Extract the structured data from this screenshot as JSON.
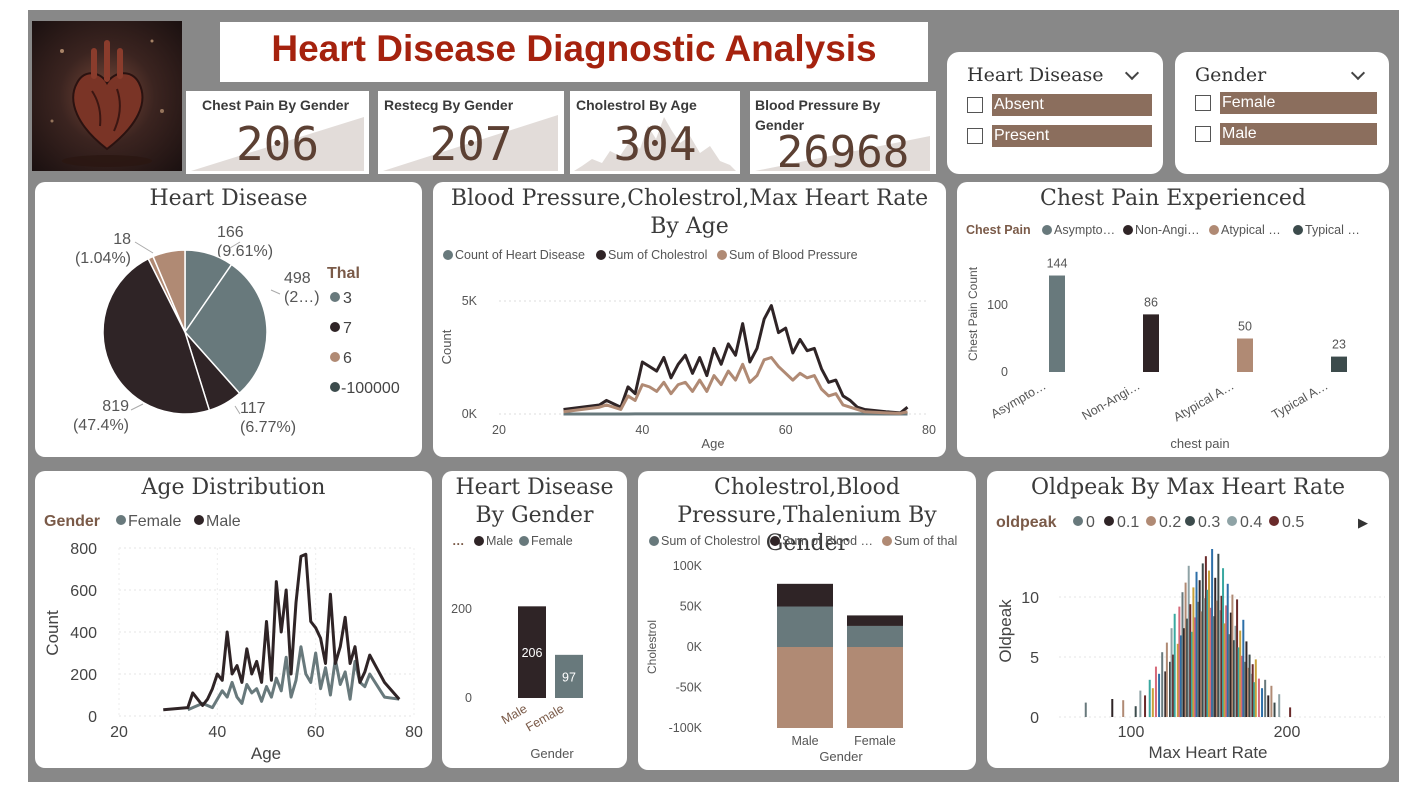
{
  "header": {
    "title": "Heart Disease Diagnostic Analysis",
    "image_icon": "anatomical-heart-icon"
  },
  "kpis": [
    {
      "label": "Chest Pain By Gender",
      "value": "206"
    },
    {
      "label": "Restecg By Gender",
      "value": "207"
    },
    {
      "label": "Cholestrol By Age",
      "value": "304"
    },
    {
      "label": "Blood Pressure By Gender",
      "value": "26968"
    }
  ],
  "slicers": {
    "heart_disease": {
      "title": "Heart Disease",
      "options": [
        "Absent",
        "Present"
      ]
    },
    "gender": {
      "title": "Gender",
      "options": [
        "Female",
        "Male"
      ]
    }
  },
  "colors": {
    "slate": "#68797c",
    "dark": "#2f2426",
    "tan": "#b08a74",
    "charcoal": "#3c4b4c",
    "brown_text": "#7a5a48",
    "title_red": "#a5220e"
  },
  "chart_data": [
    {
      "id": "heart-disease-pie",
      "type": "pie",
      "title": "Heart Disease",
      "legend_title": "Thal",
      "legend": [
        "3",
        "7",
        "6",
        "-100000"
      ],
      "slices": [
        {
          "value": 166,
          "label": "166",
          "pct": "(9.61%)"
        },
        {
          "value": 498,
          "label": "498",
          "pct": "(2…)"
        },
        {
          "value": 117,
          "label": "117",
          "pct": "(6.77%)"
        },
        {
          "value": 819,
          "label": "819",
          "pct": "(47.4%)"
        },
        {
          "value": 18,
          "label": "18",
          "pct": "(1.04%)"
        },
        {
          "value": 110,
          "label": "",
          "pct": ""
        }
      ]
    },
    {
      "id": "bp-chol-hr-by-age",
      "type": "line",
      "title": "Blood Pressure,Cholestrol,Max Heart Rate By Age",
      "xlabel": "Age",
      "ylabel": "Count",
      "xlim": [
        20,
        80
      ],
      "ylim": [
        0,
        5000
      ],
      "xticks": [
        "20",
        "40",
        "60",
        "80"
      ],
      "yticks": [
        "0K",
        "5K"
      ],
      "legend": [
        "Count of Heart Disease",
        "Sum of Cholestrol",
        "Sum of Blood Pressure"
      ],
      "x": [
        29,
        34,
        35,
        37,
        38,
        39,
        40,
        41,
        42,
        43,
        44,
        45,
        46,
        47,
        48,
        49,
        50,
        51,
        52,
        53,
        54,
        55,
        56,
        57,
        58,
        59,
        60,
        61,
        62,
        63,
        64,
        65,
        66,
        67,
        68,
        69,
        70,
        71,
        74,
        76,
        77
      ],
      "series": [
        {
          "name": "Count of Heart Disease",
          "values": [
            1,
            2,
            2,
            2,
            2,
            3,
            3,
            3,
            3,
            3,
            3,
            3,
            3,
            3,
            3,
            3,
            3,
            3,
            3,
            3,
            4,
            4,
            4,
            4,
            4,
            4,
            4,
            4,
            4,
            4,
            4,
            4,
            4,
            4,
            4,
            4,
            3,
            3,
            2,
            2,
            2
          ]
        },
        {
          "name": "Sum of Cholestrol",
          "values": [
            200,
            400,
            600,
            300,
            1200,
            900,
            2300,
            2100,
            1900,
            2500,
            1600,
            2200,
            2600,
            1800,
            2500,
            1700,
            2900,
            2200,
            3100,
            2600,
            4000,
            2300,
            2900,
            4200,
            4800,
            3600,
            3800,
            2700,
            3300,
            2800,
            2900,
            2000,
            1400,
            1500,
            800,
            600,
            300,
            200,
            100,
            50,
            300
          ]
        },
        {
          "name": "Sum of Blood Pressure",
          "values": [
            100,
            300,
            400,
            200,
            800,
            600,
            1300,
            1200,
            1000,
            1400,
            900,
            1300,
            1400,
            1000,
            1500,
            1000,
            1700,
            1300,
            1900,
            1500,
            2200,
            1400,
            1700,
            2400,
            2500,
            2100,
            1800,
            1500,
            1800,
            1600,
            1700,
            1100,
            800,
            900,
            400,
            300,
            200,
            100,
            50,
            30,
            100
          ]
        }
      ]
    },
    {
      "id": "chest-pain-bar",
      "type": "bar",
      "title": "Chest Pain Experienced",
      "legend_title": "Chest Pain",
      "legend": [
        "Asympto…",
        "Non-Angi…",
        "Atypical …",
        "Typical …"
      ],
      "categories": [
        "Asympto…",
        "Non-Angi…",
        "Atypical A…",
        "Typical A…"
      ],
      "values": [
        144,
        86,
        50,
        23
      ],
      "xlabel": "chest pain",
      "ylabel": "Chest Pain Count",
      "yticks": [
        "0",
        "100"
      ],
      "ylim": [
        0,
        150
      ]
    },
    {
      "id": "age-distribution",
      "type": "line",
      "title": "Age Distribution",
      "legend_title": "Gender",
      "legend": [
        "Female",
        "Male"
      ],
      "xlabel": "Age",
      "ylabel": "Count",
      "xlim": [
        20,
        80
      ],
      "ylim": [
        0,
        800
      ],
      "xticks": [
        "20",
        "40",
        "60",
        "80"
      ],
      "yticks": [
        "0",
        "200",
        "400",
        "600",
        "800"
      ],
      "series": [
        {
          "name": "Female",
          "x": [
            34,
            37,
            39,
            41,
            42,
            43,
            44,
            45,
            46,
            47,
            48,
            49,
            50,
            51,
            52,
            53,
            54,
            55,
            56,
            57,
            58,
            59,
            60,
            61,
            62,
            63,
            64,
            65,
            66,
            67,
            68,
            69,
            70,
            71,
            74,
            77
          ],
          "values": [
            30,
            60,
            40,
            120,
            90,
            160,
            90,
            60,
            150,
            110,
            130,
            70,
            140,
            90,
            180,
            120,
            280,
            90,
            170,
            330,
            200,
            160,
            300,
            130,
            230,
            100,
            270,
            150,
            210,
            80,
            260,
            160,
            140,
            200,
            90,
            80
          ]
        },
        {
          "name": "Male",
          "x": [
            29,
            34,
            35,
            37,
            38,
            39,
            40,
            41,
            42,
            43,
            44,
            45,
            46,
            47,
            48,
            49,
            50,
            51,
            52,
            53,
            54,
            55,
            56,
            57,
            58,
            59,
            60,
            61,
            62,
            63,
            64,
            65,
            66,
            67,
            68,
            69,
            70,
            71,
            74,
            77
          ],
          "values": [
            30,
            40,
            110,
            50,
            80,
            130,
            200,
            170,
            400,
            200,
            240,
            160,
            320,
            200,
            260,
            160,
            450,
            170,
            640,
            400,
            600,
            200,
            540,
            760,
            770,
            450,
            420,
            370,
            250,
            580,
            250,
            330,
            470,
            250,
            330,
            160,
            210,
            290,
            160,
            80
          ]
        }
      ]
    },
    {
      "id": "heart-disease-by-gender",
      "type": "bar",
      "title": "Heart Disease By Gender",
      "legend_title": "…",
      "legend": [
        "Male",
        "Female"
      ],
      "categories": [
        "Male",
        "Female"
      ],
      "values": [
        206,
        97
      ],
      "xlabel": "Gender",
      "yticks": [
        "0",
        "200"
      ],
      "ylim": [
        0,
        250
      ]
    },
    {
      "id": "chol-bp-thal-by-gender",
      "type": "bar",
      "title": "Cholestrol,Blood Pressure,Thalenium By Gender",
      "legend": [
        "Sum of Cholestrol",
        "Sum of Blood …",
        "Sum of thal"
      ],
      "categories": [
        "Male",
        "Female"
      ],
      "series": [
        {
          "name": "Sum of Cholestrol",
          "values": [
            50000,
            26000
          ]
        },
        {
          "name": "Sum of Blood …",
          "values": [
            28000,
            13000
          ]
        },
        {
          "name": "Sum of thal",
          "values": [
            -100000,
            -100000
          ]
        }
      ],
      "xlabel": "Gender",
      "ylabel": "Cholestrol",
      "yticks": [
        "-100K",
        "-50K",
        "0K",
        "50K",
        "100K"
      ],
      "ylim": [
        -100000,
        100000
      ]
    },
    {
      "id": "oldpeak-by-max-hr",
      "type": "bar",
      "title": "Oldpeak By Max Heart Rate",
      "legend_title": "oldpeak",
      "legend": [
        "0",
        "0.1",
        "0.2",
        "0.3",
        "0.4",
        "0.5"
      ],
      "xlabel": "Max Heart Rate",
      "ylabel": "Oldpeak",
      "xlim": [
        70,
        205
      ],
      "ylim": [
        0,
        15
      ],
      "xticks": [
        "100",
        "200"
      ],
      "yticks": [
        "0",
        "5",
        "10"
      ],
      "peaks": [
        [
          71,
          1.2
        ],
        [
          88,
          1.5
        ],
        [
          95,
          1.4
        ],
        [
          103,
          0.9
        ],
        [
          106,
          2.2
        ],
        [
          109,
          1.8
        ],
        [
          112,
          3.1
        ],
        [
          114,
          2.4
        ],
        [
          116,
          4.2
        ],
        [
          118,
          3.6
        ],
        [
          120,
          5.4
        ],
        [
          122,
          3.8
        ],
        [
          123,
          6.2
        ],
        [
          125,
          4.6
        ],
        [
          126,
          7.4
        ],
        [
          127,
          5.2
        ],
        [
          128,
          8.6
        ],
        [
          130,
          6.1
        ],
        [
          131,
          9.2
        ],
        [
          132,
          6.8
        ],
        [
          133,
          10.4
        ],
        [
          134,
          7.4
        ],
        [
          135,
          11.2
        ],
        [
          136,
          8.2
        ],
        [
          137,
          12.6
        ],
        [
          138,
          9.4
        ],
        [
          139,
          7.1
        ],
        [
          140,
          10.8
        ],
        [
          141,
          8.3
        ],
        [
          142,
          12.1
        ],
        [
          143,
          9.6
        ],
        [
          144,
          11.4
        ],
        [
          145,
          8.8
        ],
        [
          146,
          12.8
        ],
        [
          147,
          9.9
        ],
        [
          148,
          13.4
        ],
        [
          149,
          10.6
        ],
        [
          150,
          12.2
        ],
        [
          151,
          9.1
        ],
        [
          152,
          14.4
        ],
        [
          153,
          8.4
        ],
        [
          154,
          11.6
        ],
        [
          155,
          9.7
        ],
        [
          156,
          13.6
        ],
        [
          157,
          8.9
        ],
        [
          158,
          10.1
        ],
        [
          159,
          12.4
        ],
        [
          160,
          7.8
        ],
        [
          161,
          9.3
        ],
        [
          162,
          11.1
        ],
        [
          163,
          6.9
        ],
        [
          164,
          8.7
        ],
        [
          165,
          10.2
        ],
        [
          166,
          6.4
        ],
        [
          167,
          7.6
        ],
        [
          168,
          9.8
        ],
        [
          169,
          5.8
        ],
        [
          170,
          7.2
        ],
        [
          171,
          5.1
        ],
        [
          172,
          8.1
        ],
        [
          173,
          4.6
        ],
        [
          174,
          6.3
        ],
        [
          175,
          4.1
        ],
        [
          176,
          5.2
        ],
        [
          177,
          3.6
        ],
        [
          178,
          4.4
        ],
        [
          179,
          2.9
        ],
        [
          180,
          4.8
        ],
        [
          182,
          3.2
        ],
        [
          184,
          2.4
        ],
        [
          186,
          3.1
        ],
        [
          188,
          1.8
        ],
        [
          190,
          2.6
        ],
        [
          192,
          1.2
        ],
        [
          195,
          1.9
        ],
        [
          202,
          0.8
        ]
      ]
    }
  ]
}
